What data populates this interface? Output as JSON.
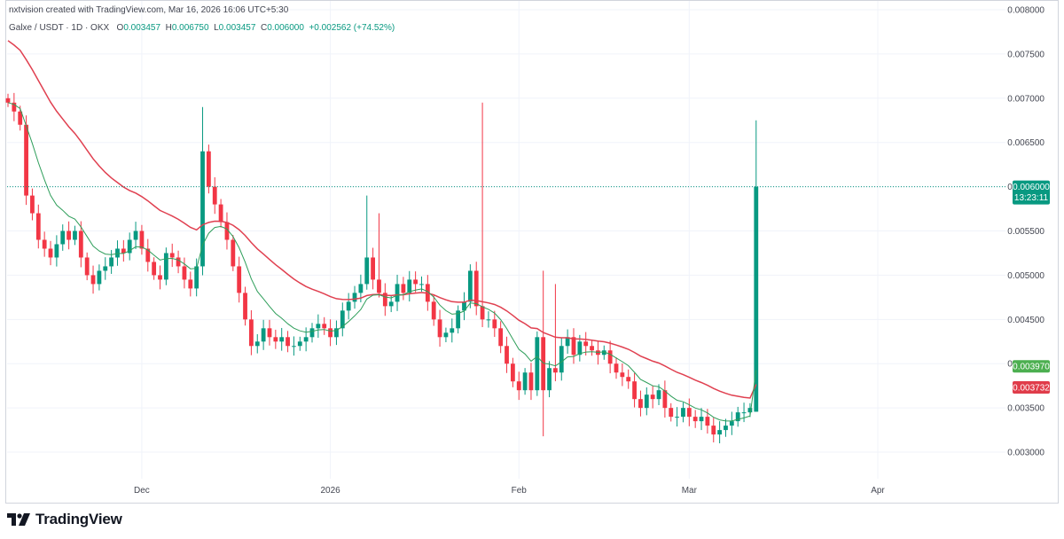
{
  "header": {
    "created_by": "nxtvision created with TradingView.com, Mar 16, 2026 16:06 UTC+5:30"
  },
  "legend": {
    "symbol": "Galxe / USDT · 1D · OKX",
    "open_label": "O",
    "open": "0.003457",
    "high_label": "H",
    "high": "0.006750",
    "low_label": "L",
    "low": "0.003457",
    "close_label": "C",
    "close": "0.006000",
    "change": "+0.002562 (+74.52%)"
  },
  "footer": {
    "brand": "TradingView"
  },
  "colors": {
    "up": "#089981",
    "down": "#f23645",
    "ema_fast": "#2e9e5a",
    "ema_slow": "#e04050",
    "price_tag": "#089981",
    "fast_tag": "#4caf50",
    "slow_tag": "#e03c4a",
    "grid": "#f0f3fa"
  },
  "chart_data": {
    "type": "candlestick",
    "y_axis": {
      "ylim": [
        0.0027,
        0.0081
      ],
      "ticks": [
        "0.003000",
        "0.003500",
        "0.004000",
        "0.004500",
        "0.005000",
        "0.005500",
        "0.006000",
        "0.006500",
        "0.007000",
        "0.007500",
        "0.008000"
      ],
      "tick_values": [
        0.003,
        0.0035,
        0.004,
        0.0045,
        0.005,
        0.0055,
        0.006,
        0.0065,
        0.007,
        0.0075,
        0.008
      ]
    },
    "x_axis": {
      "labels": [
        {
          "label": "Dec",
          "bar": 22
        },
        {
          "label": "2026",
          "bar": 53
        },
        {
          "label": "Feb",
          "bar": 84
        },
        {
          "label": "Mar",
          "bar": 112
        },
        {
          "label": "Apr",
          "bar": 143
        }
      ]
    },
    "price_tag": {
      "value": 0.006,
      "label": "0.006000",
      "countdown": "13:23:11"
    },
    "ema_fast_tag": {
      "value": 0.00397,
      "label": "0.003970"
    },
    "ema_slow_tag": {
      "value": 0.003732,
      "label": "0.003732"
    },
    "closes": [
      0.00695,
      0.00685,
      0.0067,
      0.0059,
      0.0057,
      0.0054,
      0.0053,
      0.0052,
      0.00535,
      0.0055,
      0.0054,
      0.0055,
      0.0052,
      0.005,
      0.0049,
      0.00505,
      0.0051,
      0.0052,
      0.0053,
      0.00525,
      0.0054,
      0.0055,
      0.0053,
      0.00515,
      0.005,
      0.00495,
      0.00525,
      0.0052,
      0.0051,
      0.00495,
      0.00485,
      0.0051,
      0.0064,
      0.006,
      0.0058,
      0.0056,
      0.0054,
      0.0051,
      0.0048,
      0.0045,
      0.0042,
      0.00425,
      0.0044,
      0.0043,
      0.00425,
      0.0043,
      0.0042,
      0.0042,
      0.00425,
      0.0043,
      0.0044,
      0.00445,
      0.0044,
      0.0043,
      0.0044,
      0.0046,
      0.0047,
      0.0048,
      0.0049,
      0.0052,
      0.00495,
      0.0048,
      0.00465,
      0.0047,
      0.0049,
      0.0048,
      0.00495,
      0.0049,
      0.0049,
      0.0047,
      0.0045,
      0.0043,
      0.00435,
      0.0044,
      0.0046,
      0.0047,
      0.00505,
      0.00465,
      0.0045,
      0.0045,
      0.0044,
      0.0042,
      0.004,
      0.0038,
      0.0037,
      0.0039,
      0.0037,
      0.0043,
      0.0037,
      0.00395,
      0.0039,
      0.0042,
      0.0043,
      0.0041,
      0.00425,
      0.0042,
      0.00415,
      0.0041,
      0.00415,
      0.004,
      0.0039,
      0.00385,
      0.0038,
      0.0036,
      0.0035,
      0.00365,
      0.0036,
      0.0037,
      0.0035,
      0.0034,
      0.0034,
      0.0035,
      0.0034,
      0.00335,
      0.0034,
      0.0033,
      0.0032,
      0.00325,
      0.0033,
      0.00335,
      0.00345,
      0.00345,
      0.0035,
      0.006
    ]
  }
}
